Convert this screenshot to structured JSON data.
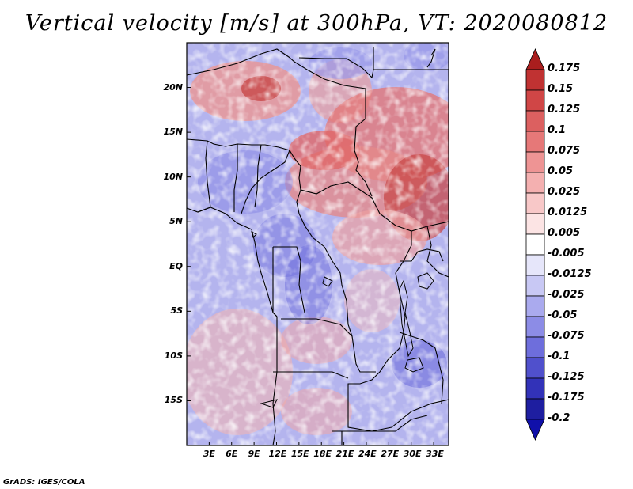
{
  "title": "Vertical velocity [m/s] at 300hPa, VT: 2020080812",
  "footer": "GrADS: IGES/COLA",
  "map": {
    "lat_labels": [
      "20N",
      "15N",
      "10N",
      "5N",
      "EQ",
      "5S",
      "10S",
      "15S"
    ],
    "lon_labels": [
      "3E",
      "6E",
      "9E",
      "12E",
      "15E",
      "18E",
      "21E",
      "24E",
      "27E",
      "30E",
      "33E"
    ],
    "lon_range": [
      0,
      35
    ],
    "lat_range": [
      -20,
      25
    ]
  },
  "colorbar": {
    "labels": [
      "0.175",
      "0.15",
      "0.125",
      "0.1",
      "0.075",
      "0.05",
      "0.025",
      "0.0125",
      "0.005",
      "-0.005",
      "-0.0125",
      "-0.025",
      "-0.05",
      "-0.075",
      "-0.1",
      "-0.125",
      "-0.175",
      "-0.2"
    ],
    "colors": [
      "#aa1e1e",
      "#c03232",
      "#d04646",
      "#dc6060",
      "#e67878",
      "#ee9494",
      "#f4b0b0",
      "#f8c8c8",
      "#fce4e4",
      "#ffffff",
      "#e6e6fa",
      "#c8c8f4",
      "#aaaaee",
      "#8c8ce6",
      "#6e6edc",
      "#5050cc",
      "#3232b8",
      "#1e1ea0",
      "#1010aa"
    ]
  }
}
